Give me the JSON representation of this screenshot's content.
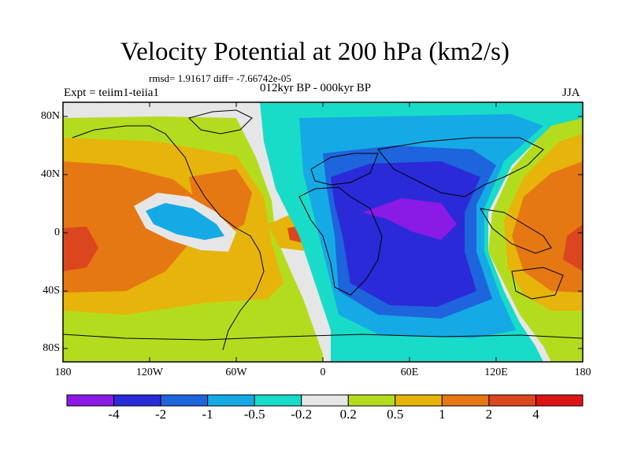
{
  "title": "Velocity Potential at 200 hPa (km2/s)",
  "stats": "rmsd= 1.91617 diff= -7.66742e-05",
  "experiment": "Expt = teiim1-teiia1",
  "period": "012kyr BP - 000kyr BP",
  "season": "JJA",
  "lat_labels": [
    "80N",
    "40N",
    "0",
    "40S",
    "80S"
  ],
  "lon_labels": [
    "180",
    "120W",
    "60W",
    "0",
    "60E",
    "120E",
    "180"
  ],
  "colorbar": {
    "labels": [
      "-4",
      "-2",
      "-1",
      "-0.5",
      "-0.2",
      "0.2",
      "0.5",
      "1",
      "2",
      "4"
    ],
    "colors": [
      "#8a1ae6",
      "#2a2ad8",
      "#1e64dc",
      "#15aae6",
      "#18dcc8",
      "#e6e6e6",
      "#b4dc1e",
      "#e6b40a",
      "#e67814",
      "#dc461e",
      "#dc1414"
    ]
  }
}
